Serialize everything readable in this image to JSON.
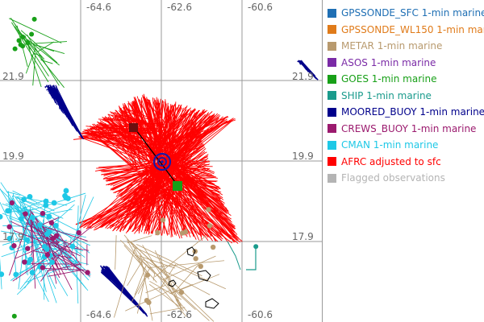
{
  "map": {
    "lon_ticks_top": [
      "-64.6",
      "-62.6",
      "-60.6"
    ],
    "lon_ticks_bottom": [
      "-64.6",
      "-62.6",
      "-60.6"
    ],
    "lat_ticks_left": [
      "21.9",
      "19.9",
      "17.9"
    ],
    "lat_ticks_right": [
      "21.9",
      "19.9",
      "17.9"
    ],
    "storm_center_marker": "circle-target-icon",
    "colors": {
      "afrc": "#ff0000",
      "moored_buoy": "#00008b",
      "cman": "#1ec8e6",
      "crews_buoy": "#9b1a6e",
      "goes": "#18a018",
      "metar": "#b89a6e",
      "ship": "#1a9b8c",
      "coast": "#000000",
      "grid": "#999999"
    }
  },
  "legend": [
    {
      "label": "GPSSONDE_SFC 1-min marine",
      "color": "#1f6fb4"
    },
    {
      "label": "GPSSONDE_WL150 1-min mar",
      "color": "#e07b1a"
    },
    {
      "label": "METAR 1-min marine",
      "color": "#b89a6e"
    },
    {
      "label": "ASOS 1-min marine",
      "color": "#7a2aa6"
    },
    {
      "label": "GOES 1-min marine",
      "color": "#18a018"
    },
    {
      "label": "SHIP 1-min marine",
      "color": "#1a9b8c"
    },
    {
      "label": "MOORED_BUOY 1-min marine",
      "color": "#00008b"
    },
    {
      "label": "CREWS_BUOY 1-min marine",
      "color": "#9b1a6e"
    },
    {
      "label": "CMAN 1-min marine",
      "color": "#1ec8e6"
    },
    {
      "label": "AFRC adjusted to sfc",
      "color": "#ff0000"
    },
    {
      "label": "Flagged observations",
      "color": "#b4b4b4"
    }
  ]
}
